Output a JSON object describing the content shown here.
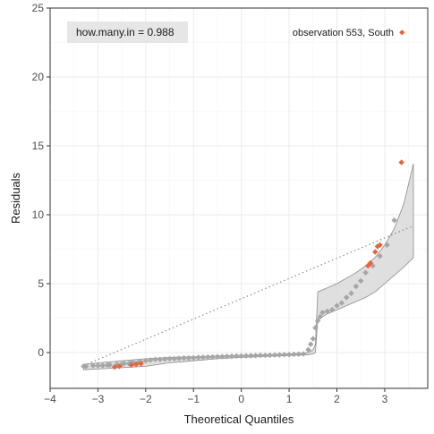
{
  "chart_data": {
    "type": "scatter",
    "title": "",
    "xlabel": "Theoretical Quantiles",
    "ylabel": "Residuals",
    "xlim": [
      -4,
      3.9
    ],
    "ylim": [
      -2.6,
      25
    ],
    "x_ticks": [
      -4,
      -3,
      -2,
      -1,
      0,
      1,
      2,
      3
    ],
    "x_tick_labels": [
      "−4",
      "−3",
      "−2",
      "−1",
      "0",
      "1",
      "2",
      "3"
    ],
    "y_ticks": [
      0,
      5,
      10,
      15,
      20,
      25
    ],
    "y_tick_labels": [
      "0",
      "5",
      "10",
      "15",
      "20",
      "25"
    ],
    "grid": true,
    "annotation": "how.many.in = 0.988",
    "legend": {
      "label": "observation 553, South",
      "position": "top-right",
      "color": "#e8643c"
    },
    "colors": {
      "points": "#a6a6a6",
      "highlight": "#e8643c",
      "band_fill": "#d9d9d9",
      "band_line": "#8c8c8c",
      "reference_line": "#8c8c8c",
      "grid_major": "#ebebeb",
      "grid_minor": "#f5f5f5",
      "annotation_bg": "#e6e6e6"
    },
    "reference_line": {
      "x": [
        -3.3,
        3.6
      ],
      "y": [
        -0.95,
        9.2
      ]
    },
    "confidence_band": {
      "x": [
        -3.3,
        -3.0,
        -2.5,
        -2.0,
        -1.5,
        -1.0,
        -0.5,
        0.0,
        0.5,
        1.0,
        1.3,
        1.4,
        1.5,
        1.55,
        1.6,
        1.8,
        2.0,
        2.2,
        2.4,
        2.6,
        2.8,
        3.0,
        3.2,
        3.4,
        3.6
      ],
      "upper": [
        -0.85,
        -0.75,
        -0.6,
        -0.45,
        -0.35,
        -0.3,
        -0.25,
        -0.2,
        -0.15,
        -0.1,
        -0.05,
        0.0,
        0.2,
        0.6,
        4.4,
        4.7,
        5.0,
        5.4,
        5.8,
        6.3,
        6.9,
        7.8,
        9.0,
        10.8,
        13.7
      ],
      "lower": [
        -1.25,
        -1.2,
        -1.1,
        -1.0,
        -0.75,
        -0.6,
        -0.45,
        -0.35,
        -0.28,
        -0.22,
        -0.18,
        -0.15,
        -0.1,
        0.0,
        2.4,
        2.8,
        3.1,
        3.4,
        3.7,
        4.0,
        4.4,
        5.0,
        5.6,
        6.2,
        6.9
      ]
    },
    "points": {
      "x": [
        -3.3,
        -3.25,
        -3.1,
        -3.0,
        -2.9,
        -2.8,
        -2.75,
        -2.6,
        -2.5,
        -2.45,
        -2.35,
        -2.3,
        -2.25,
        -2.15,
        -2.1,
        -2.0,
        -1.9,
        -1.8,
        -1.7,
        -1.6,
        -1.5,
        -1.4,
        -1.3,
        -1.2,
        -1.1,
        -1.0,
        -0.9,
        -0.8,
        -0.7,
        -0.6,
        -0.5,
        -0.4,
        -0.3,
        -0.2,
        -0.1,
        0.0,
        0.1,
        0.2,
        0.3,
        0.4,
        0.5,
        0.6,
        0.7,
        0.8,
        0.9,
        1.0,
        1.1,
        1.2,
        1.3,
        1.4,
        1.45,
        1.5,
        1.55,
        1.6,
        1.65,
        1.7,
        1.8,
        1.9,
        2.0,
        2.1,
        2.2,
        2.3,
        2.4,
        2.5,
        2.6,
        2.75,
        2.9,
        3.05,
        3.2
      ],
      "y": [
        -1.0,
        -1.0,
        -0.95,
        -0.95,
        -0.95,
        -0.9,
        -0.9,
        -0.85,
        -0.85,
        -0.8,
        -0.8,
        -0.75,
        -0.75,
        -0.7,
        -0.7,
        -0.6,
        -0.55,
        -0.5,
        -0.5,
        -0.48,
        -0.45,
        -0.45,
        -0.42,
        -0.4,
        -0.4,
        -0.38,
        -0.35,
        -0.35,
        -0.33,
        -0.32,
        -0.3,
        -0.3,
        -0.28,
        -0.27,
        -0.25,
        -0.25,
        -0.24,
        -0.23,
        -0.22,
        -0.2,
        -0.2,
        -0.19,
        -0.18,
        -0.17,
        -0.15,
        -0.15,
        -0.13,
        -0.12,
        -0.1,
        0.2,
        0.6,
        1.0,
        1.8,
        2.3,
        2.6,
        2.9,
        3.0,
        3.1,
        3.4,
        3.6,
        4.0,
        4.3,
        4.8,
        5.2,
        5.8,
        6.3,
        7.0,
        7.8,
        9.6
      ]
    },
    "highlight_points": {
      "x": [
        -2.65,
        -2.55,
        -2.3,
        -2.2,
        -2.1,
        2.65,
        2.7,
        2.8,
        2.85,
        2.9,
        3.35
      ],
      "y": [
        -1.05,
        -1.0,
        -0.9,
        -0.85,
        -0.8,
        6.3,
        6.5,
        7.3,
        7.7,
        7.8,
        13.8
      ]
    }
  }
}
